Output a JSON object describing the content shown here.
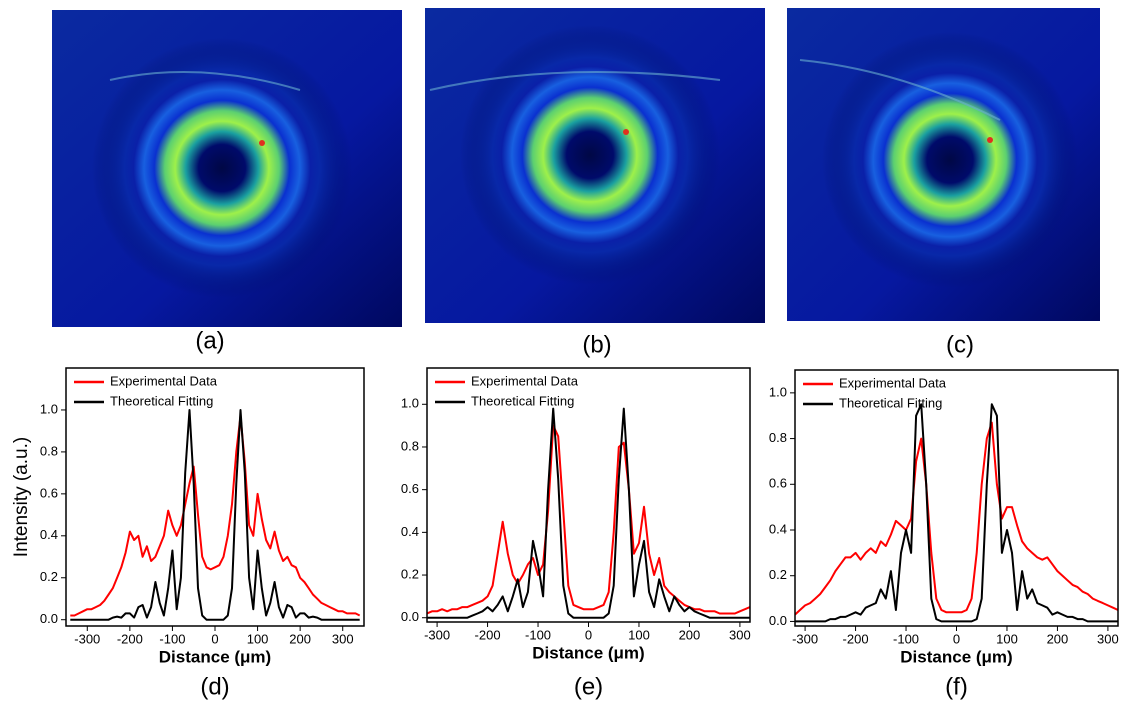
{
  "panels": [
    {
      "label": "(a)"
    },
    {
      "label": "(b)"
    },
    {
      "label": "(c)"
    }
  ],
  "chart_data": [
    {
      "type": "line",
      "caption": "(d)",
      "xlabel": "Distance (μm)",
      "ylabel": "Intensity (a.u.)",
      "legend": "upper left",
      "xlim": [
        -350,
        350
      ],
      "xticks": [
        -300,
        -200,
        -100,
        0,
        100,
        200,
        300
      ],
      "ylim": [
        -0.03,
        1.2
      ],
      "yticks": [
        {
          "value": 0,
          "label": "0.0"
        },
        0.2,
        0.4,
        0.6,
        0.8,
        {
          "value": 1,
          "label": "1.0"
        }
      ],
      "x": [
        -340,
        -330,
        -320,
        -310,
        -300,
        -290,
        -280,
        -270,
        -260,
        -250,
        -240,
        -230,
        -220,
        -210,
        -200,
        -190,
        -180,
        -170,
        -160,
        -150,
        -140,
        -130,
        -120,
        -110,
        -100,
        -90,
        -80,
        -70,
        -60,
        -50,
        -40,
        -30,
        -20,
        -10,
        0,
        10,
        20,
        30,
        40,
        50,
        60,
        70,
        80,
        90,
        100,
        110,
        120,
        130,
        140,
        150,
        160,
        170,
        180,
        190,
        200,
        210,
        220,
        230,
        240,
        250,
        260,
        270,
        280,
        290,
        300,
        310,
        320,
        330,
        340
      ],
      "series": [
        {
          "name": "Experimental Data",
          "color": "#ff0000",
          "values": [
            0.02,
            0.02,
            0.03,
            0.04,
            0.05,
            0.05,
            0.06,
            0.07,
            0.09,
            0.12,
            0.15,
            0.2,
            0.25,
            0.32,
            0.42,
            0.38,
            0.4,
            0.3,
            0.35,
            0.28,
            0.3,
            0.35,
            0.4,
            0.52,
            0.45,
            0.4,
            0.45,
            0.55,
            0.65,
            0.73,
            0.5,
            0.3,
            0.25,
            0.24,
            0.25,
            0.26,
            0.3,
            0.4,
            0.55,
            0.8,
            0.97,
            0.75,
            0.45,
            0.4,
            0.6,
            0.48,
            0.38,
            0.34,
            0.42,
            0.33,
            0.28,
            0.3,
            0.26,
            0.25,
            0.2,
            0.18,
            0.15,
            0.12,
            0.1,
            0.08,
            0.07,
            0.06,
            0.05,
            0.04,
            0.04,
            0.03,
            0.03,
            0.03,
            0.02
          ]
        },
        {
          "name": "Theoretical Fitting",
          "color": "#000000",
          "values": [
            0,
            0,
            0,
            0,
            0,
            0,
            0,
            0,
            0,
            0,
            0.01,
            0.015,
            0.01,
            0.03,
            0.03,
            0.01,
            0.06,
            0.07,
            0.01,
            0.06,
            0.18,
            0.08,
            0.02,
            0.15,
            0.33,
            0.05,
            0.2,
            0.7,
            1.0,
            0.65,
            0.15,
            0.02,
            0,
            0,
            0,
            0,
            0,
            0.02,
            0.15,
            0.65,
            1.0,
            0.7,
            0.2,
            0.05,
            0.33,
            0.15,
            0.02,
            0.08,
            0.18,
            0.06,
            0.01,
            0.07,
            0.06,
            0.01,
            0.03,
            0.03,
            0.01,
            0.015,
            0.01,
            0,
            0,
            0,
            0,
            0,
            0,
            0,
            0,
            0,
            0
          ]
        }
      ]
    },
    {
      "type": "line",
      "caption": "(e)",
      "xlabel": "Distance (μm)",
      "legend": "upper left",
      "xlim": [
        -320,
        320
      ],
      "xticks": [
        -300,
        -200,
        -100,
        0,
        100,
        200,
        300
      ],
      "ylim": [
        -0.02,
        1.17
      ],
      "yticks": [
        {
          "value": 0,
          "label": "0.0"
        },
        0.2,
        0.4,
        0.6,
        0.8,
        {
          "value": 1,
          "label": "1.0"
        }
      ],
      "x": [
        -320,
        -310,
        -300,
        -290,
        -280,
        -270,
        -260,
        -250,
        -240,
        -230,
        -220,
        -210,
        -200,
        -190,
        -180,
        -170,
        -160,
        -150,
        -140,
        -130,
        -120,
        -110,
        -100,
        -90,
        -80,
        -70,
        -60,
        -50,
        -40,
        -30,
        -20,
        -10,
        0,
        10,
        20,
        30,
        40,
        50,
        60,
        70,
        80,
        90,
        100,
        110,
        120,
        130,
        140,
        150,
        160,
        170,
        180,
        190,
        200,
        210,
        220,
        230,
        240,
        250,
        260,
        270,
        280,
        290,
        300,
        310,
        320
      ],
      "series": [
        {
          "name": "Experimental Data",
          "color": "#ff0000",
          "values": [
            0.02,
            0.03,
            0.03,
            0.04,
            0.03,
            0.04,
            0.04,
            0.05,
            0.05,
            0.06,
            0.07,
            0.08,
            0.1,
            0.15,
            0.3,
            0.45,
            0.3,
            0.2,
            0.16,
            0.2,
            0.25,
            0.28,
            0.2,
            0.25,
            0.5,
            0.9,
            0.85,
            0.5,
            0.15,
            0.06,
            0.05,
            0.04,
            0.04,
            0.04,
            0.05,
            0.06,
            0.12,
            0.4,
            0.8,
            0.82,
            0.6,
            0.3,
            0.35,
            0.52,
            0.3,
            0.2,
            0.28,
            0.15,
            0.12,
            0.1,
            0.08,
            0.06,
            0.05,
            0.04,
            0.04,
            0.03,
            0.03,
            0.03,
            0.02,
            0.02,
            0.02,
            0.02,
            0.03,
            0.04,
            0.05
          ]
        },
        {
          "name": "Theoretical Fitting",
          "color": "#000000",
          "values": [
            0,
            0,
            0,
            0,
            0,
            0,
            0,
            0,
            0,
            0.01,
            0.02,
            0.03,
            0.05,
            0.03,
            0.06,
            0.1,
            0.03,
            0.1,
            0.18,
            0.05,
            0.12,
            0.36,
            0.25,
            0.1,
            0.6,
            0.98,
            0.65,
            0.15,
            0.02,
            0,
            0,
            0,
            0,
            0,
            0,
            0,
            0.02,
            0.15,
            0.65,
            0.98,
            0.6,
            0.1,
            0.25,
            0.36,
            0.12,
            0.05,
            0.18,
            0.1,
            0.03,
            0.1,
            0.06,
            0.03,
            0.05,
            0.03,
            0.02,
            0.01,
            0,
            0,
            0,
            0,
            0,
            0,
            0,
            0,
            0
          ]
        }
      ]
    },
    {
      "type": "line",
      "caption": "(f)",
      "xlabel": "Distance (μm)",
      "legend": "upper left",
      "xlim": [
        -320,
        320
      ],
      "xticks": [
        -300,
        -200,
        -100,
        0,
        100,
        200,
        300
      ],
      "ylim": [
        -0.02,
        1.1
      ],
      "yticks": [
        {
          "value": 0,
          "label": "0.0"
        },
        0.2,
        0.4,
        0.6,
        0.8,
        {
          "value": 1,
          "label": "1.0"
        }
      ],
      "x": [
        -320,
        -310,
        -300,
        -290,
        -280,
        -270,
        -260,
        -250,
        -240,
        -230,
        -220,
        -210,
        -200,
        -190,
        -180,
        -170,
        -160,
        -150,
        -140,
        -130,
        -120,
        -110,
        -100,
        -90,
        -80,
        -70,
        -60,
        -50,
        -40,
        -30,
        -20,
        -10,
        0,
        10,
        20,
        30,
        40,
        50,
        60,
        70,
        80,
        90,
        100,
        110,
        120,
        130,
        140,
        150,
        160,
        170,
        180,
        190,
        200,
        210,
        220,
        230,
        240,
        250,
        260,
        270,
        280,
        290,
        300,
        310,
        320
      ],
      "series": [
        {
          "name": "Experimental Data",
          "color": "#ff0000",
          "values": [
            0.03,
            0.05,
            0.07,
            0.08,
            0.1,
            0.12,
            0.15,
            0.18,
            0.22,
            0.25,
            0.28,
            0.28,
            0.3,
            0.27,
            0.3,
            0.32,
            0.3,
            0.35,
            0.33,
            0.38,
            0.44,
            0.42,
            0.4,
            0.45,
            0.7,
            0.8,
            0.6,
            0.3,
            0.1,
            0.05,
            0.04,
            0.04,
            0.04,
            0.04,
            0.05,
            0.1,
            0.3,
            0.6,
            0.8,
            0.87,
            0.6,
            0.45,
            0.5,
            0.5,
            0.42,
            0.35,
            0.32,
            0.3,
            0.28,
            0.27,
            0.28,
            0.25,
            0.22,
            0.2,
            0.18,
            0.16,
            0.15,
            0.13,
            0.12,
            0.1,
            0.09,
            0.08,
            0.07,
            0.06,
            0.05
          ]
        },
        {
          "name": "Theoretical Fitting",
          "color": "#000000",
          "values": [
            0,
            0,
            0,
            0,
            0,
            0,
            0,
            0.01,
            0.01,
            0.02,
            0.02,
            0.03,
            0.04,
            0.03,
            0.06,
            0.07,
            0.08,
            0.14,
            0.1,
            0.22,
            0.05,
            0.3,
            0.4,
            0.3,
            0.9,
            0.95,
            0.6,
            0.1,
            0.01,
            0,
            0,
            0,
            0,
            0,
            0,
            0,
            0.01,
            0.1,
            0.6,
            0.95,
            0.9,
            0.3,
            0.4,
            0.3,
            0.05,
            0.22,
            0.1,
            0.14,
            0.08,
            0.07,
            0.06,
            0.03,
            0.04,
            0.03,
            0.02,
            0.02,
            0.01,
            0.01,
            0,
            0,
            0,
            0,
            0,
            0,
            0
          ]
        }
      ]
    }
  ]
}
